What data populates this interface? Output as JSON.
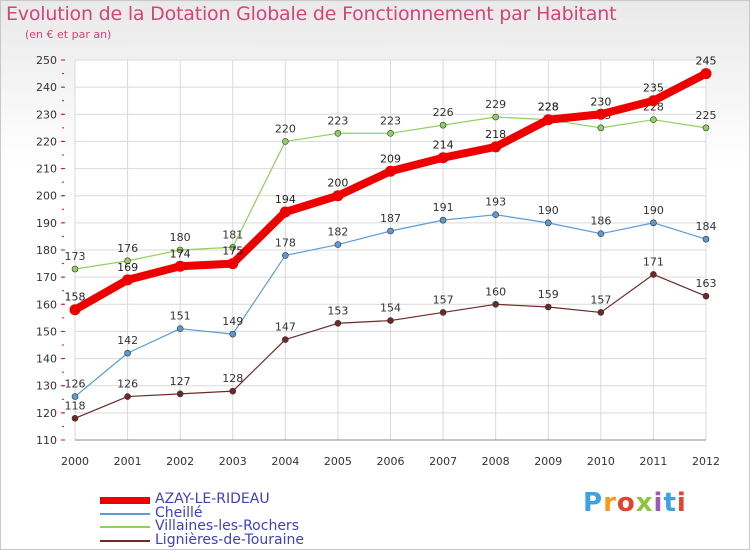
{
  "title": "Evolution de la Dotation Globale de Fonctionnement par Habitant",
  "subtitle": "(en € et par an)",
  "logo": {
    "text": "Proxiti",
    "colors": [
      "#3ba3e0",
      "#f29d1e",
      "#e0442d",
      "#8cc63f",
      "#9b59b6",
      "#3ba3e0",
      "#e0442d"
    ]
  },
  "chart_data": {
    "type": "line",
    "title": "Evolution de la Dotation Globale de Fonctionnement par Habitant",
    "subtitle": "(en € et par an)",
    "xlabel": "",
    "ylabel": "",
    "ylim": [
      110,
      250
    ],
    "yticks": [
      110,
      120,
      130,
      140,
      150,
      160,
      170,
      180,
      190,
      200,
      210,
      220,
      230,
      240,
      250
    ],
    "categories": [
      "2000",
      "2001",
      "2002",
      "2003",
      "2004",
      "2005",
      "2006",
      "2007",
      "2008",
      "2009",
      "2010",
      "2011",
      "2012"
    ],
    "grid": true,
    "legend_position": "bottom-left",
    "series": [
      {
        "name": "Lignières-de-Touraine",
        "color": "#702828",
        "values": [
          118,
          126,
          127,
          128,
          147,
          153,
          154,
          157,
          160,
          159,
          157,
          171,
          163
        ]
      },
      {
        "name": "Cheillé",
        "color": "#5b9bd5",
        "values": [
          126,
          142,
          151,
          149,
          178,
          182,
          187,
          191,
          193,
          190,
          186,
          190,
          184
        ]
      },
      {
        "name": "Villaines-les-Rochers",
        "color": "#90d060",
        "values": [
          173,
          176,
          180,
          181,
          220,
          223,
          223,
          226,
          229,
          228,
          225,
          228,
          225
        ]
      },
      {
        "name": "AZAY-LE-RIDEAU",
        "color": "#ee0000",
        "values": [
          158,
          169,
          174,
          175,
          194,
          200,
          209,
          214,
          218,
          228,
          230,
          235,
          245
        ]
      }
    ]
  },
  "legend": [
    {
      "name": "AZAY-LE-RIDEAU",
      "color": "#ee0000",
      "thickness": 7
    },
    {
      "name": "Cheillé",
      "color": "#5b9bd5",
      "thickness": 2
    },
    {
      "name": "Villaines-les-Rochers",
      "color": "#90d060",
      "thickness": 2
    },
    {
      "name": "Lignières-de-Touraine",
      "color": "#702828",
      "thickness": 2
    }
  ]
}
